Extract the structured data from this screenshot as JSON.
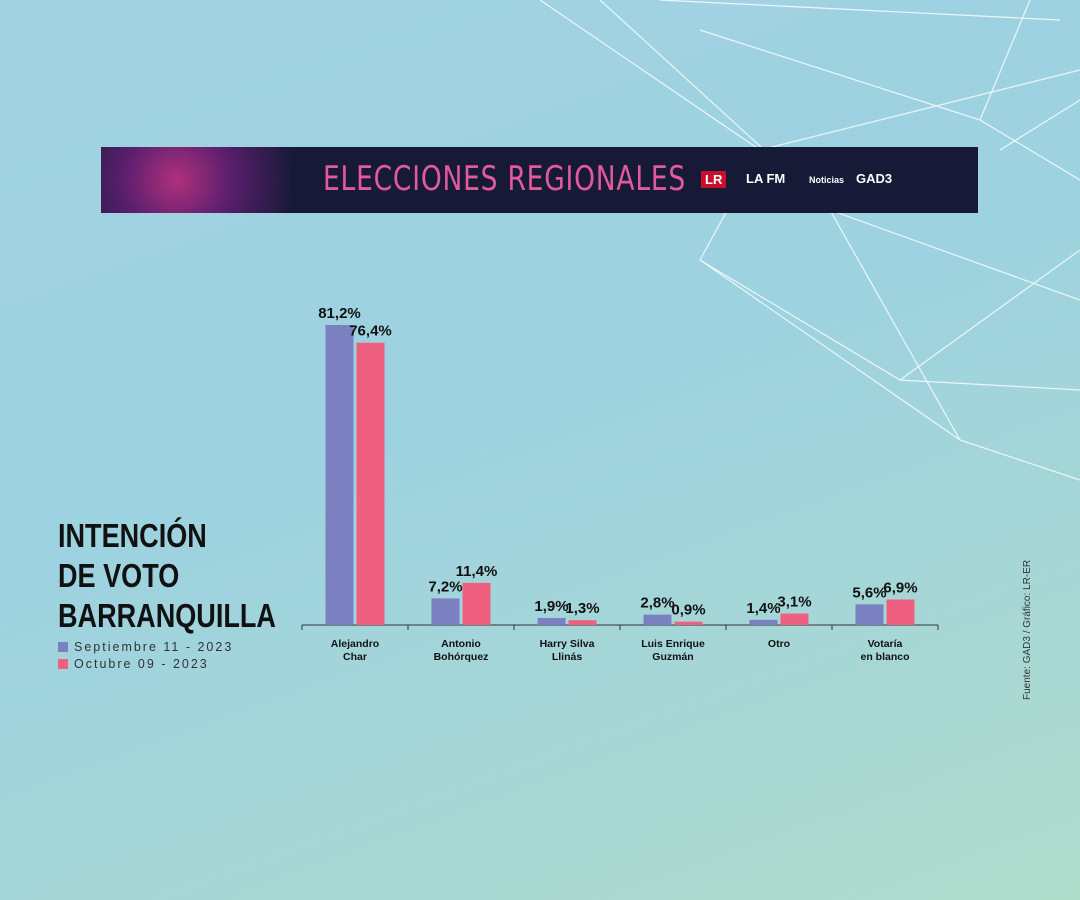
{
  "banner": {
    "title": "ELECCIONES REGIONALES",
    "logos": [
      "LR",
      "LA FM",
      "Noticias",
      "GAD3"
    ]
  },
  "source": "Fuente: GAD3 / Gráfico: LR-ER",
  "chart_data": {
    "type": "bar",
    "title": "INTENCIÓN\nDE VOTO\nBARRANQUILLA",
    "categories": [
      "Alejandro\nChar",
      "Antonio\nBohórquez",
      "Harry Silva\nLlinás",
      "Luis Enrique\nGuzmán",
      "Otro",
      "Votaría\nen blanco"
    ],
    "series": [
      {
        "name": "Septiembre 11 - 2023",
        "color": "#7b80c0",
        "values": [
          81.2,
          7.2,
          1.9,
          2.8,
          1.4,
          5.6
        ],
        "value_labels": [
          "81,2%",
          "7,2%",
          "1,9%",
          "2,8%",
          "1,4%",
          "5,6%"
        ]
      },
      {
        "name": "Octubre 09 - 2023",
        "color": "#ee5f80",
        "values": [
          76.4,
          11.4,
          1.3,
          0.9,
          3.1,
          6.9
        ],
        "value_labels": [
          "76,4%",
          "11,4%",
          "1,3%",
          "0,9%",
          "3,1%",
          "6,9%"
        ]
      }
    ]
  }
}
